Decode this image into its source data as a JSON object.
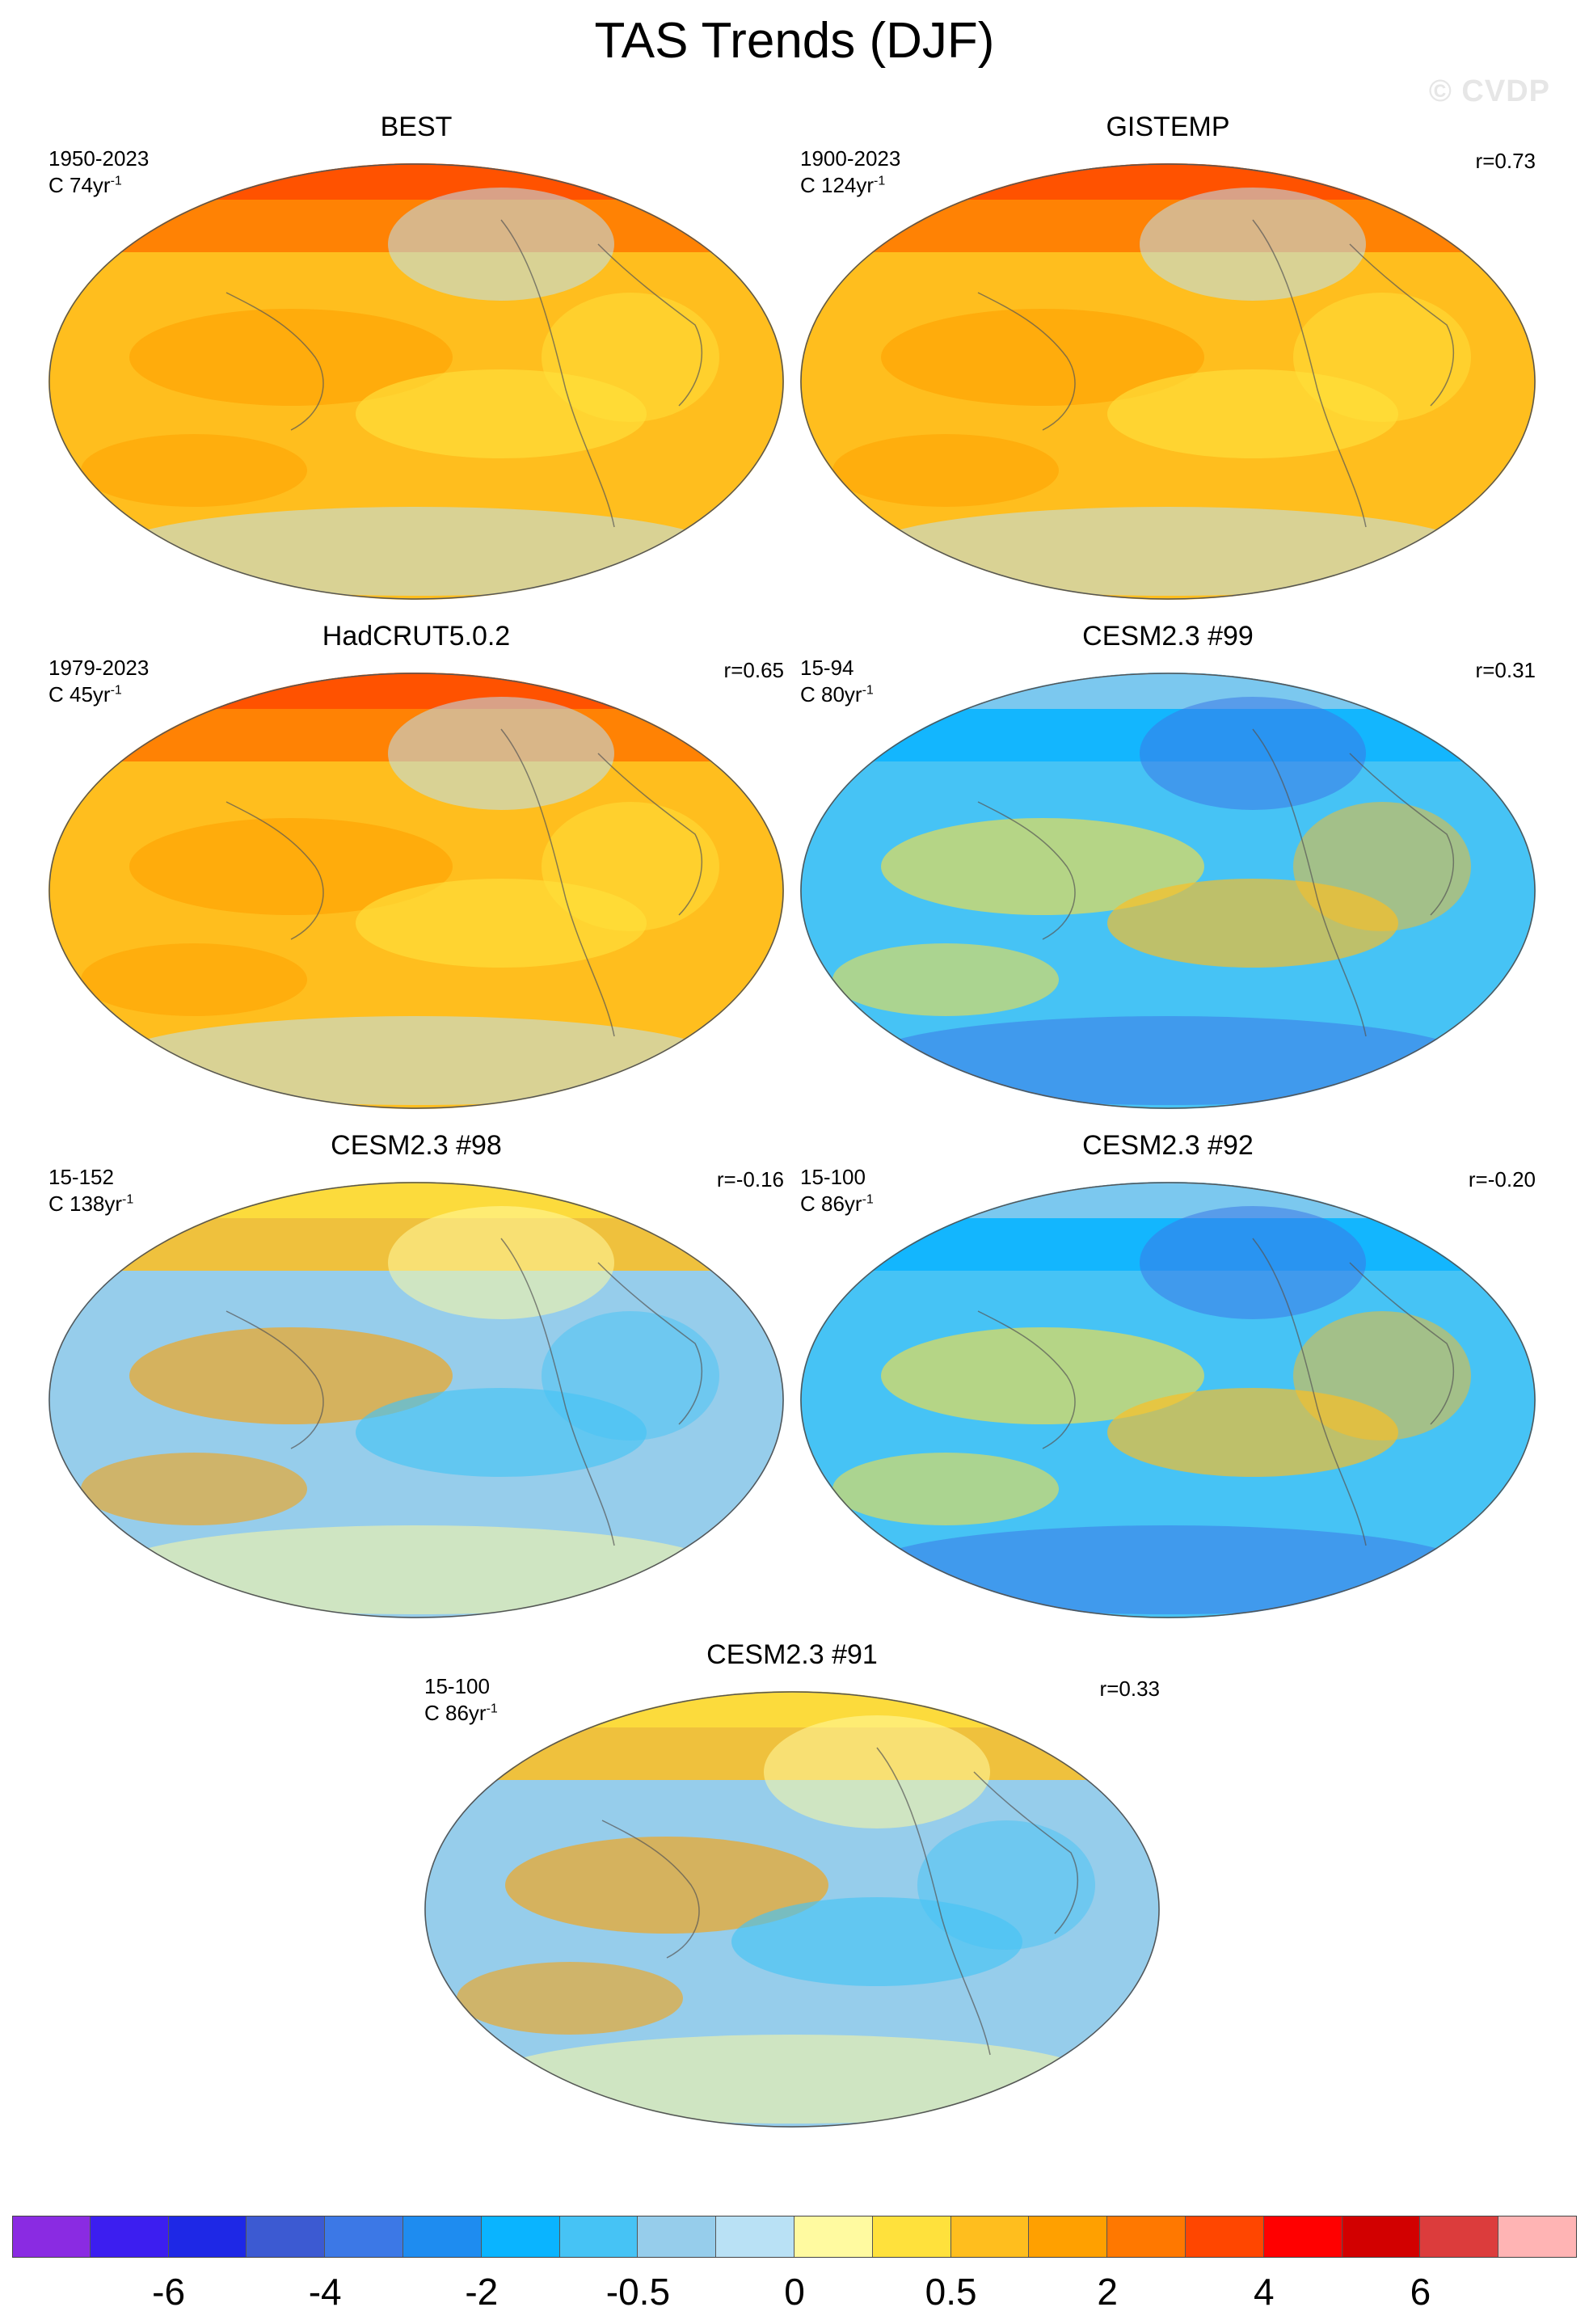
{
  "title": "TAS Trends (DJF)",
  "watermark": "© CVDP",
  "panels": [
    {
      "title": "BEST",
      "period": "1950-2023",
      "unit_prefix": "C 74yr",
      "unit_sup": "-1",
      "r": "",
      "theme": "warm"
    },
    {
      "title": "GISTEMP",
      "period": "1900-2023",
      "unit_prefix": "C 124yr",
      "unit_sup": "-1",
      "r": "r=0.73",
      "theme": "warm"
    },
    {
      "title": "HadCRUT5.0.2",
      "period": "1979-2023",
      "unit_prefix": "C 45yr",
      "unit_sup": "-1",
      "r": "r=0.65",
      "theme": "warm"
    },
    {
      "title": "CESM2.3 #99",
      "period": "15-94",
      "unit_prefix": "C 80yr",
      "unit_sup": "-1",
      "r": "r=0.31",
      "theme": "cool"
    },
    {
      "title": "CESM2.3 #98",
      "period": "15-152",
      "unit_prefix": "C 138yr",
      "unit_sup": "-1",
      "r": "r=-0.16",
      "theme": "mixed"
    },
    {
      "title": "CESM2.3 #92",
      "period": "15-100",
      "unit_prefix": "C 86yr",
      "unit_sup": "-1",
      "r": "r=-0.20",
      "theme": "cool"
    },
    {
      "title": "CESM2.3 #91",
      "period": "15-100",
      "unit_prefix": "C 86yr",
      "unit_sup": "-1",
      "r": "r=0.33",
      "theme": "mixed"
    }
  ],
  "colorbar": {
    "colors": [
      "#8a2be2",
      "#3c1ef0",
      "#1e28e6",
      "#3c5ad2",
      "#3c78e6",
      "#1e8cf0",
      "#0ab4ff",
      "#46c3f5",
      "#96cdeb",
      "#b9e1f5",
      "#fffaa0",
      "#ffe13c",
      "#ffbe1e",
      "#ffa000",
      "#ff7800",
      "#ff4600",
      "#ff0000",
      "#d20000",
      "#dc3c3c",
      "#ffb4b4"
    ],
    "labels": [
      "-6",
      "-4",
      "-2",
      "-0.5",
      "0",
      "0.5",
      "2",
      "4",
      "6"
    ]
  }
}
